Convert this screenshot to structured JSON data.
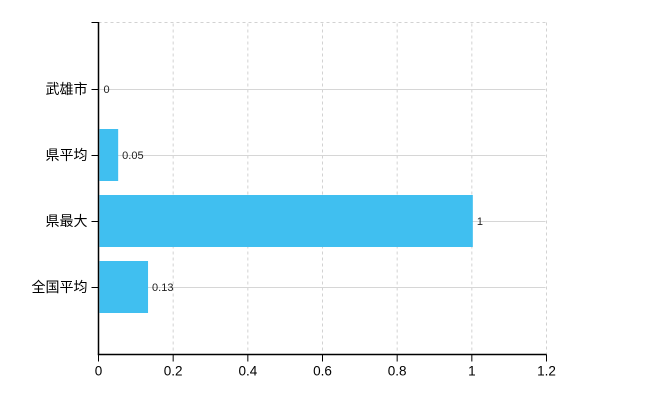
{
  "chart_data": {
    "type": "bar",
    "orientation": "horizontal",
    "title": "",
    "xlabel": "",
    "ylabel": "",
    "categories": [
      "武雄市",
      "県平均",
      "県最大",
      "全国平均"
    ],
    "values": [
      0,
      0.05,
      1,
      0.13
    ],
    "value_labels": [
      "0",
      "0.05",
      "1",
      "0.13"
    ],
    "xlim": [
      0,
      1.2
    ],
    "xticks": [
      0,
      0.2,
      0.4,
      0.6,
      0.8,
      1,
      1.2
    ],
    "xtick_labels": [
      "0",
      "0.2",
      "0.4",
      "0.6",
      "0.8",
      "1",
      "1.2"
    ],
    "grid": true,
    "legend": false,
    "colors": {
      "bar": "#40BFF0",
      "axis": "#000000",
      "gridline_h": "#d6d6d6",
      "gridline_v": "#d2d2d2",
      "border_dashed": "#d2d2d2",
      "value_label": "#222222",
      "tick_label": "#000000",
      "background": "#ffffff"
    }
  }
}
